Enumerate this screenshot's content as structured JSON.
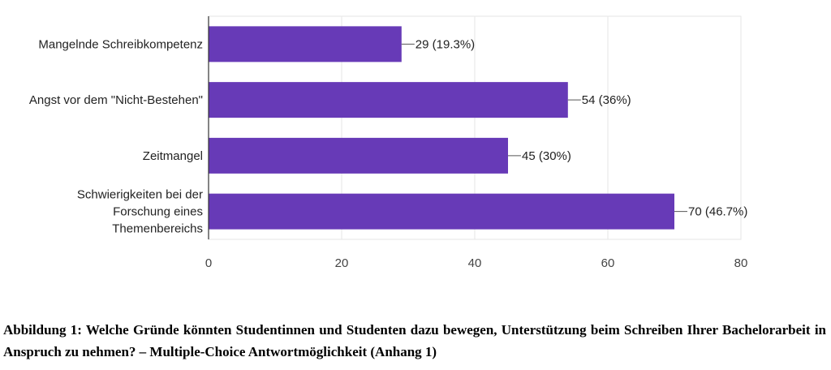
{
  "chart_data": {
    "type": "bar",
    "orientation": "horizontal",
    "categories": [
      [
        "Mangelnde Schreibkompetenz"
      ],
      [
        "Angst vor dem \"Nicht-Bestehen\""
      ],
      [
        "Zeitmangel"
      ],
      [
        "Schwierigkeiten bei der",
        "Forschung eines",
        "Themenbereichs"
      ]
    ],
    "values": [
      29,
      54,
      45,
      70
    ],
    "value_labels": [
      "29 (19.3%)",
      "54 (36%)",
      "45 (30%)",
      "70 (46.7%)"
    ],
    "xlim": [
      0,
      80
    ],
    "xticks": [
      0,
      20,
      40,
      60,
      80
    ],
    "grid": true,
    "bar_color": "#673AB7",
    "title": "",
    "xlabel": "",
    "ylabel": ""
  },
  "caption": "Abbildung 1: Welche Gründe könnten Studentinnen und Studenten dazu bewegen, Unterstützung beim Schreiben Ihrer Bachelorarbeit in Anspruch zu nehmen? – Multiple-Choice Antwortmöglichkeit (Anhang 1)"
}
